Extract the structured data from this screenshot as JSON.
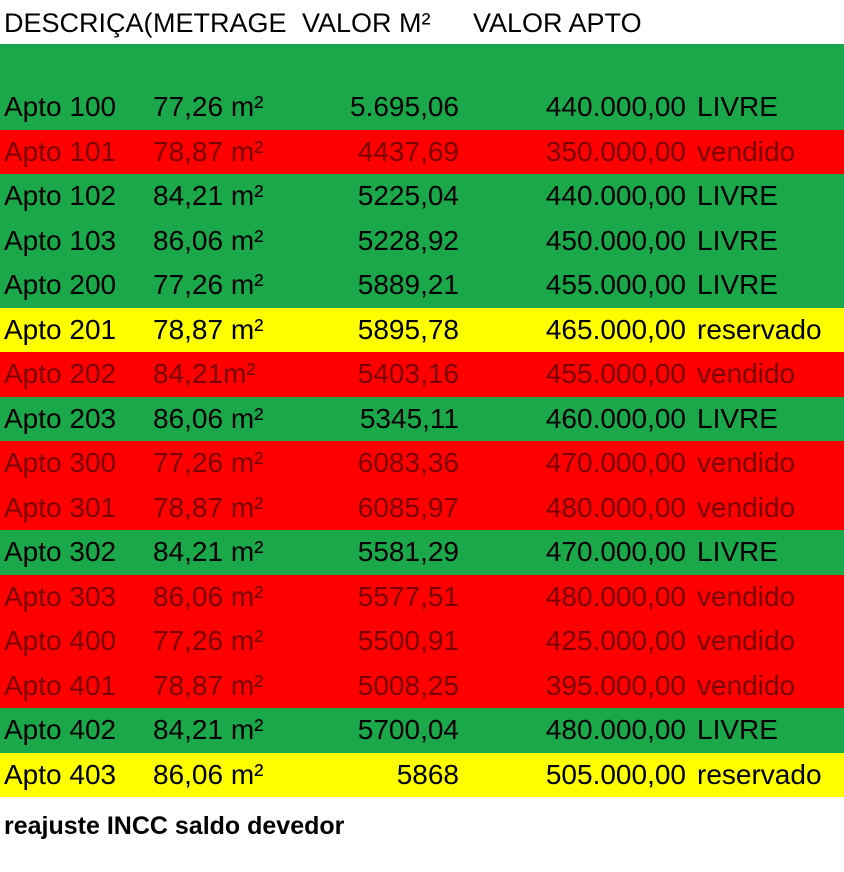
{
  "columns": {
    "descricao": "DESCRIÇA(",
    "metragem": "METRAGE",
    "valor_m2": "VALOR M²",
    "valor_apto": "VALOR APTO"
  },
  "rows": [
    {
      "desc": "Apto 100",
      "area": "77,26 m²",
      "valor_m2": "5.695,06",
      "valor_apto": "440.000,00",
      "status": "LIVRE",
      "color": "#1aa84a"
    },
    {
      "desc": "Apto 101",
      "area": "78,87 m²",
      "valor_m2": "4437,69",
      "valor_apto": "350.000,00",
      "status": "vendido",
      "color": "#ff0000"
    },
    {
      "desc": "Apto 102",
      "area": "84,21 m²",
      "valor_m2": "5225,04",
      "valor_apto": "440.000,00",
      "status": "LIVRE",
      "color": "#1aa84a"
    },
    {
      "desc": "Apto 103",
      "area": "86,06 m²",
      "valor_m2": "5228,92",
      "valor_apto": "450.000,00",
      "status": "LIVRE",
      "color": "#1aa84a"
    },
    {
      "desc": "Apto 200",
      "area": "77,26 m²",
      "valor_m2": "5889,21",
      "valor_apto": "455.000,00",
      "status": "LIVRE",
      "color": "#1aa84a"
    },
    {
      "desc": "Apto 201",
      "area": "78,87 m²",
      "valor_m2": "5895,78",
      "valor_apto": "465.000,00",
      "status": "reservado",
      "color": "#ffff00"
    },
    {
      "desc": "Apto 202",
      "area": "84,21m²",
      "valor_m2": "5403,16",
      "valor_apto": "455.000,00",
      "status": "vendido",
      "color": "#ff0000"
    },
    {
      "desc": "Apto 203",
      "area": "86,06 m²",
      "valor_m2": "5345,11",
      "valor_apto": "460.000,00",
      "status": "LIVRE",
      "color": "#1aa84a"
    },
    {
      "desc": "Apto 300",
      "area": "77,26 m²",
      "valor_m2": "6083,36",
      "valor_apto": "470.000,00",
      "status": "vendido",
      "color": "#ff0000"
    },
    {
      "desc": "Apto 301",
      "area": "78,87 m²",
      "valor_m2": "6085,97",
      "valor_apto": "480.000,00",
      "status": "vendido",
      "color": "#ff0000"
    },
    {
      "desc": "Apto 302",
      "area": "84,21 m²",
      "valor_m2": "5581,29",
      "valor_apto": "470.000,00",
      "status": "LIVRE",
      "color": "#1aa84a"
    },
    {
      "desc": "Apto 303",
      "area": "86,06 m²",
      "valor_m2": "5577,51",
      "valor_apto": "480.000,00",
      "status": "vendido",
      "color": "#ff0000"
    },
    {
      "desc": "Apto 400",
      "area": "77,26 m²",
      "valor_m2": "5500,91",
      "valor_apto": "425.000,00",
      "status": "vendido",
      "color": "#ff0000"
    },
    {
      "desc": "Apto 401",
      "area": "78,87 m²",
      "valor_m2": "5008,25",
      "valor_apto": "395.000,00",
      "status": "vendido",
      "color": "#ff0000"
    },
    {
      "desc": "Apto 402",
      "area": "84,21 m²",
      "valor_m2": "5700,04",
      "valor_apto": "480.000,00",
      "status": "LIVRE",
      "color": "#1aa84a"
    },
    {
      "desc": "Apto 403",
      "area": "86,06 m²",
      "valor_m2": "5868",
      "valor_apto": "505.000,00",
      "status": "reservado",
      "color": "#ffff00"
    }
  ],
  "footer": {
    "note": "reajuste INCC saldo devedor"
  },
  "colors": {
    "livre": "#1aa84a",
    "vendido": "#ff0000",
    "reservado": "#ffff00"
  }
}
